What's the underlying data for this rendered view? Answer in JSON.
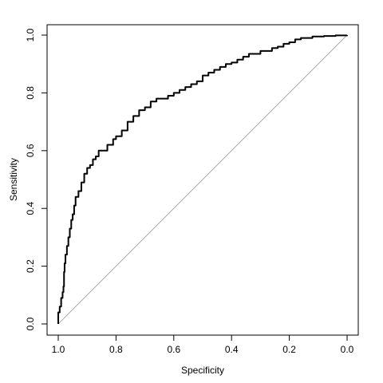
{
  "chart_data": {
    "type": "line",
    "xlabel": "Specificity",
    "ylabel": "Sensitivity",
    "xlim": [
      1.0,
      0.0
    ],
    "ylim": [
      0.0,
      1.0
    ],
    "x_reversed": true,
    "x_ticks": [
      1.0,
      0.8,
      0.6,
      0.4,
      0.2,
      0.0
    ],
    "x_tick_labels": [
      "1.0",
      "0.8",
      "0.6",
      "0.4",
      "0.2",
      "0.0"
    ],
    "y_ticks": [
      0.0,
      0.2,
      0.4,
      0.6,
      0.8,
      1.0
    ],
    "y_tick_labels": [
      "0.0",
      "0.2",
      "0.4",
      "0.6",
      "0.8",
      "1.0"
    ],
    "grid": false,
    "legend": "none",
    "colors": {
      "curve": "#000000",
      "diagonal": "#aaaaaa",
      "frame": "#000000"
    },
    "reference_line": {
      "from": [
        1.0,
        0.0
      ],
      "to": [
        0.0,
        1.0
      ]
    },
    "series": [
      {
        "points": [
          [
            1.0,
            0.0
          ],
          [
            1.0,
            0.04
          ],
          [
            0.995,
            0.06
          ],
          [
            0.99,
            0.09
          ],
          [
            0.985,
            0.11
          ],
          [
            0.982,
            0.13
          ],
          [
            0.98,
            0.18
          ],
          [
            0.978,
            0.21
          ],
          [
            0.975,
            0.24
          ],
          [
            0.97,
            0.27
          ],
          [
            0.965,
            0.3
          ],
          [
            0.96,
            0.33
          ],
          [
            0.955,
            0.36
          ],
          [
            0.95,
            0.38
          ],
          [
            0.945,
            0.41
          ],
          [
            0.94,
            0.44
          ],
          [
            0.93,
            0.46
          ],
          [
            0.92,
            0.49
          ],
          [
            0.91,
            0.52
          ],
          [
            0.9,
            0.54
          ],
          [
            0.89,
            0.55
          ],
          [
            0.88,
            0.57
          ],
          [
            0.87,
            0.58
          ],
          [
            0.86,
            0.6
          ],
          [
            0.85,
            0.6
          ],
          [
            0.83,
            0.62
          ],
          [
            0.81,
            0.64
          ],
          [
            0.8,
            0.65
          ],
          [
            0.78,
            0.67
          ],
          [
            0.76,
            0.7
          ],
          [
            0.74,
            0.72
          ],
          [
            0.72,
            0.74
          ],
          [
            0.7,
            0.75
          ],
          [
            0.68,
            0.77
          ],
          [
            0.66,
            0.78
          ],
          [
            0.64,
            0.78
          ],
          [
            0.62,
            0.79
          ],
          [
            0.6,
            0.8
          ],
          [
            0.58,
            0.81
          ],
          [
            0.56,
            0.82
          ],
          [
            0.54,
            0.83
          ],
          [
            0.52,
            0.84
          ],
          [
            0.5,
            0.86
          ],
          [
            0.48,
            0.87
          ],
          [
            0.46,
            0.88
          ],
          [
            0.44,
            0.89
          ],
          [
            0.42,
            0.9
          ],
          [
            0.4,
            0.905
          ],
          [
            0.38,
            0.915
          ],
          [
            0.36,
            0.925
          ],
          [
            0.34,
            0.935
          ],
          [
            0.3,
            0.945
          ],
          [
            0.26,
            0.955
          ],
          [
            0.24,
            0.96
          ],
          [
            0.22,
            0.97
          ],
          [
            0.2,
            0.975
          ],
          [
            0.18,
            0.985
          ],
          [
            0.16,
            0.99
          ],
          [
            0.12,
            0.995
          ],
          [
            0.08,
            0.997
          ],
          [
            0.04,
            0.999
          ],
          [
            0.0,
            1.0
          ]
        ]
      }
    ]
  }
}
